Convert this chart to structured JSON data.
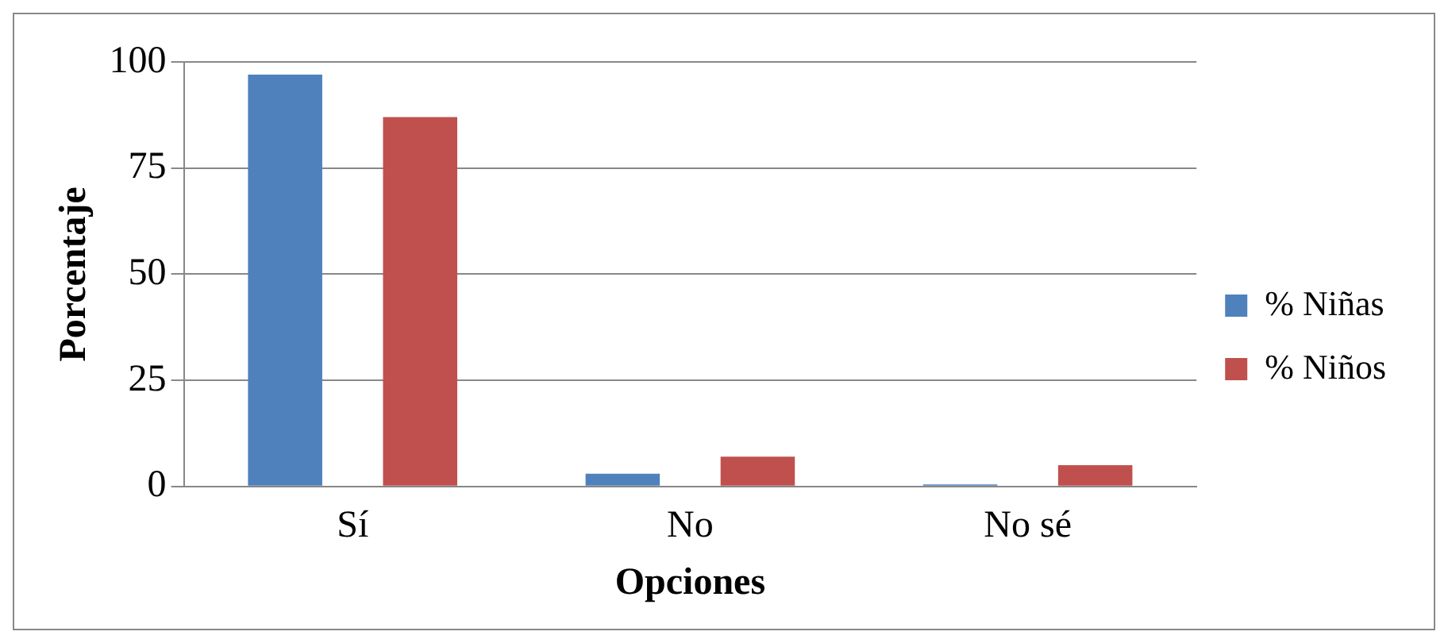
{
  "chart_data": {
    "type": "bar",
    "xlabel": "Opciones",
    "ylabel": "Porcentaje",
    "categories": [
      "Sí",
      "No",
      "No sé"
    ],
    "series": [
      {
        "name": "% Niñas",
        "color": "#4f81bd",
        "values": [
          97,
          3,
          0.5
        ]
      },
      {
        "name": "% Niños",
        "color": "#c0504d",
        "values": [
          87,
          7,
          5
        ]
      }
    ],
    "ylim": [
      0,
      100
    ],
    "yticks": [
      0,
      25,
      50,
      75,
      100
    ],
    "grid": "y",
    "legend": "right"
  }
}
